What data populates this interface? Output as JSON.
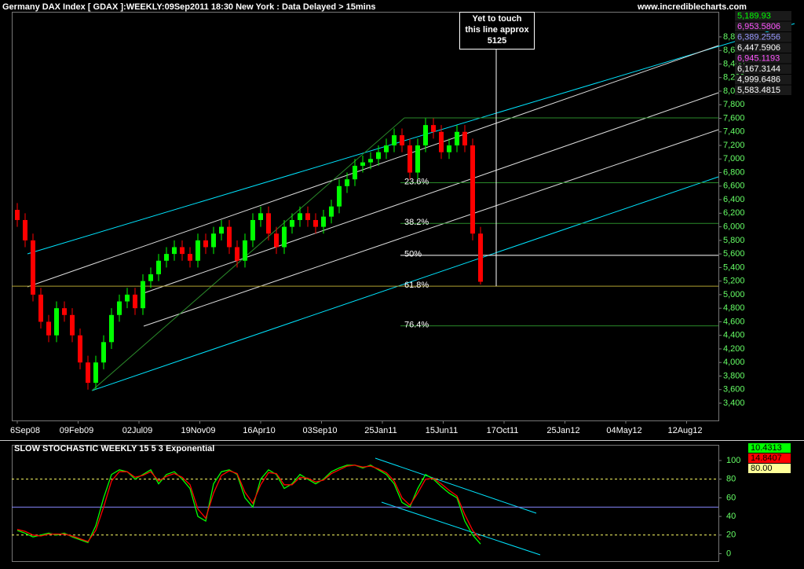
{
  "chart_data": {
    "type": "candlestick",
    "title": "Germany DAX Index [ GDAX ]:WEEKLY:09Sep2011 18:30 New York : Data Delayed > 15mins",
    "source": "www.incrediblecharts.com",
    "xticks": [
      "6Sep08",
      "09Feb09",
      "02Jul09",
      "19Nov09",
      "16Apr10",
      "03Sep10",
      "25Jan11",
      "15Jun11",
      "17Oct11",
      "25Jan12",
      "04May12",
      "12Aug12"
    ],
    "open": [
      6250,
      6100,
      5800,
      5000,
      4600,
      4400,
      4800,
      4700,
      4400,
      4000,
      3700,
      4000,
      4300,
      4700,
      4900,
      5000,
      4800,
      5200,
      5300,
      5500,
      5600,
      5700,
      5600,
      5500,
      5800,
      5700,
      5900,
      6000,
      5700,
      5500,
      5800,
      6100,
      6200,
      5900,
      5700,
      6000,
      6100,
      6200,
      6100,
      6000,
      6150,
      6300,
      6600,
      6700,
      6900,
      6950,
      7000,
      7100,
      7200,
      7350,
      7200,
      6800,
      7200,
      7500,
      7400,
      7100,
      7200,
      7400,
      7200,
      5900
    ],
    "high": [
      6350,
      6200,
      5900,
      5100,
      4700,
      4900,
      4900,
      4800,
      4500,
      4100,
      4100,
      4400,
      4800,
      5000,
      5100,
      5100,
      5300,
      5400,
      5600,
      5700,
      5800,
      5800,
      5700,
      5900,
      5900,
      6000,
      6100,
      6100,
      5800,
      5900,
      6200,
      6300,
      6300,
      6000,
      6100,
      6200,
      6300,
      6300,
      6200,
      6250,
      6400,
      6700,
      6800,
      7000,
      7050,
      7100,
      7200,
      7300,
      7450,
      7450,
      7300,
      7300,
      7600,
      7600,
      7500,
      7300,
      7500,
      7500,
      7300,
      6000
    ],
    "low": [
      6000,
      5700,
      4900,
      4500,
      4300,
      4300,
      4600,
      4300,
      3900,
      3600,
      3600,
      3900,
      4200,
      4600,
      4800,
      4700,
      4700,
      5100,
      5200,
      5400,
      5500,
      5500,
      5400,
      5400,
      5600,
      5600,
      5800,
      5600,
      5400,
      5400,
      5700,
      6000,
      5800,
      5600,
      5600,
      5900,
      6000,
      6000,
      5900,
      5900,
      6050,
      6200,
      6500,
      6600,
      6800,
      6850,
      6900,
      7000,
      7100,
      7100,
      6700,
      6700,
      7100,
      7300,
      7000,
      7000,
      7100,
      7100,
      5800,
      5150
    ],
    "close": [
      6100,
      5800,
      5000,
      4600,
      4400,
      4800,
      4700,
      4400,
      4000,
      3700,
      4000,
      4300,
      4700,
      4900,
      5000,
      4800,
      5200,
      5300,
      5500,
      5600,
      5700,
      5600,
      5500,
      5800,
      5700,
      5900,
      6000,
      5700,
      5500,
      5800,
      6100,
      6200,
      5900,
      5700,
      6000,
      6100,
      6200,
      6100,
      6000,
      6150,
      6300,
      6600,
      6700,
      6900,
      6950,
      7000,
      7100,
      7200,
      7350,
      7200,
      6800,
      7200,
      7500,
      7400,
      7100,
      7200,
      7400,
      7200,
      5900,
      5190
    ],
    "up_color": "#00ff00",
    "down_color": "#ff0000",
    "ylim": [
      3145,
      9170
    ],
    "yticks": [
      {
        "value": 3400,
        "label": "3,400"
      },
      {
        "value": 3600,
        "label": "3,600"
      },
      {
        "value": 3800,
        "label": "3,800"
      },
      {
        "value": 4000,
        "label": "4,000"
      },
      {
        "value": 4200,
        "label": "4,200"
      },
      {
        "value": 4400,
        "label": "4,400"
      },
      {
        "value": 4600,
        "label": "4,600"
      },
      {
        "value": 4800,
        "label": "4,800"
      },
      {
        "value": 5000,
        "label": "5,000"
      },
      {
        "value": 5200,
        "label": "5,200"
      },
      {
        "value": 5400,
        "label": "5,400"
      },
      {
        "value": 5600,
        "label": "5,600"
      },
      {
        "value": 5800,
        "label": "5,800"
      },
      {
        "value": 6000,
        "label": "6,000"
      },
      {
        "value": 6200,
        "label": "6,200"
      },
      {
        "value": 6400,
        "label": "6,400"
      },
      {
        "value": 6600,
        "label": "6,600"
      },
      {
        "value": 6800,
        "label": "6,800"
      },
      {
        "value": 7000,
        "label": "7,000"
      },
      {
        "value": 7200,
        "label": "7,200"
      },
      {
        "value": 7400,
        "label": "7,400"
      },
      {
        "value": 7600,
        "label": "7,600"
      },
      {
        "value": 7800,
        "label": "7,800"
      },
      {
        "value": 8000,
        "label": "8,000"
      },
      {
        "value": 8200,
        "label": "8,200"
      },
      {
        "value": 8400,
        "label": "8,400"
      },
      {
        "value": 8600,
        "label": "8,600"
      },
      {
        "value": 8800,
        "label": "8,800"
      }
    ],
    "fib_levels": [
      {
        "label": "23.6%",
        "value": 6650
      },
      {
        "label": "38.2%",
        "value": 6050
      },
      {
        "label": "50%",
        "value": 5580
      },
      {
        "label": "61.8%",
        "value": 5125
      },
      {
        "label": "76.4%",
        "value": 4540
      }
    ],
    "annotation": [
      "Yet to touch",
      "this line approx",
      "5125"
    ],
    "price_legend": [
      {
        "label": "5,189.93",
        "color": "#00ff00"
      },
      {
        "label": "6,953.5806",
        "color": "#ff55ff"
      },
      {
        "label": "6,389.2556",
        "color": "#9999ff"
      },
      {
        "label": "6,447.5906",
        "color": "#ffffff"
      },
      {
        "label": "6,945.1193",
        "color": "#ff55ff"
      },
      {
        "label": "6,167.3144",
        "color": "#ffffff"
      },
      {
        "label": "4,999.6486",
        "color": "#ffffff"
      },
      {
        "label": "5,583.4815",
        "color": "#ffffff"
      }
    ],
    "indicator": {
      "title": "SLOW STOCHASTIC WEEKLY 15 5 3 Exponential",
      "ylim": [
        -8,
        116
      ],
      "yticks": [
        0,
        20,
        40,
        60,
        80,
        100
      ],
      "series": [
        {
          "color": "#00ff00",
          "values": [
            25,
            22,
            18,
            20,
            22,
            20,
            22,
            18,
            15,
            12,
            30,
            60,
            85,
            90,
            88,
            80,
            85,
            90,
            75,
            85,
            88,
            80,
            70,
            40,
            35,
            75,
            88,
            90,
            85,
            60,
            50,
            80,
            90,
            85,
            70,
            75,
            85,
            80,
            75,
            80,
            88,
            92,
            95,
            95,
            92,
            95,
            90,
            85,
            75,
            55,
            50,
            70,
            85,
            80,
            72,
            65,
            60,
            35,
            20,
            10.4313
          ]
        },
        {
          "color": "#ff0000",
          "values": [
            26,
            24,
            20,
            19,
            21,
            21,
            21,
            19,
            16,
            13,
            25,
            50,
            78,
            88,
            88,
            82,
            84,
            88,
            78,
            83,
            86,
            82,
            74,
            48,
            38,
            65,
            84,
            89,
            86,
            66,
            54,
            74,
            87,
            86,
            74,
            74,
            82,
            81,
            77,
            79,
            86,
            90,
            94,
            95,
            93,
            94,
            91,
            87,
            78,
            60,
            52,
            65,
            80,
            81,
            75,
            68,
            62,
            42,
            25,
            14.8407
          ]
        }
      ],
      "levels": [
        {
          "value": 80,
          "color": "#ffff66"
        },
        {
          "value": 50,
          "color": "#8888ff"
        },
        {
          "value": 20,
          "color": "#ffff66"
        }
      ],
      "legend": [
        {
          "label": "10.4313",
          "color": "#00ff00"
        },
        {
          "label": "14.8407",
          "color": "#ff0000"
        },
        {
          "label": "80.00",
          "color": "#ffff66"
        }
      ]
    }
  }
}
